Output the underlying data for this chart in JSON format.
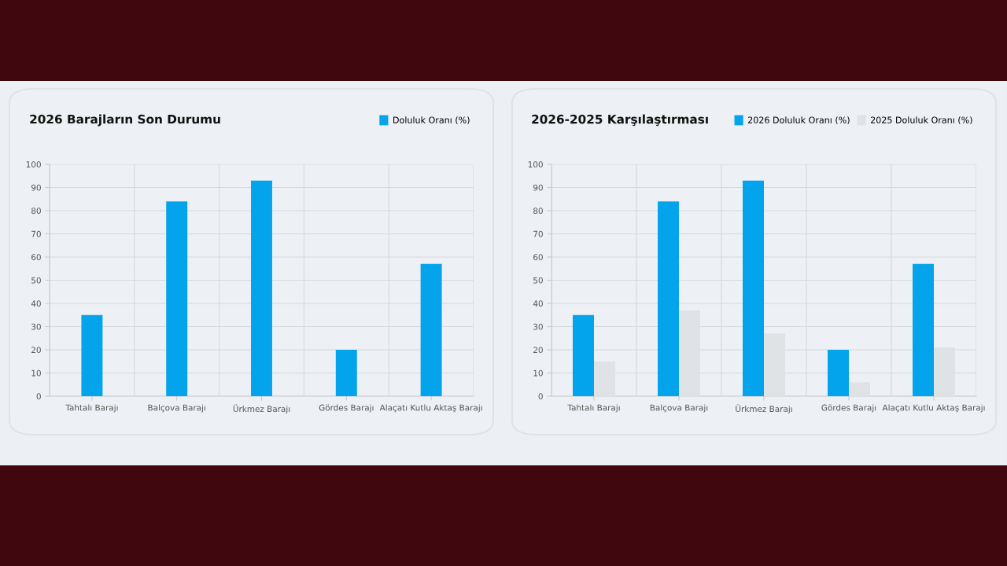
{
  "chart_data": [
    {
      "type": "bar",
      "title": "2026 Barajların Son Durumu",
      "categories": [
        "Tahtalı Barajı",
        "Balçova Barajı",
        "Ürkmez Barajı",
        "Gördes Barajı",
        "Alaçatı Kutlu Aktaş Barajı"
      ],
      "series": [
        {
          "name": "Doluluk Oranı (%)",
          "color": "#03a4ec",
          "values": [
            35,
            84,
            93,
            20,
            57
          ]
        }
      ],
      "ylim": [
        0,
        100
      ],
      "yticks": [
        0,
        10,
        20,
        30,
        40,
        50,
        60,
        70,
        80,
        90,
        100
      ],
      "grid": true,
      "legend": "top right"
    },
    {
      "type": "bar",
      "title": "2026-2025 Karşılaştırması",
      "categories": [
        "Tahtalı Barajı",
        "Balçova Barajı",
        "Ürkmez Barajı",
        "Gördes Barajı",
        "Alaçatı Kutlu Aktaş Barajı"
      ],
      "series": [
        {
          "name": "2026 Doluluk Oranı (%)",
          "color": "#03a4ec",
          "values": [
            35,
            84,
            93,
            20,
            57
          ]
        },
        {
          "name": "2025 Doluluk Oranı (%)",
          "color": "#e0e3e6",
          "values": [
            15,
            37,
            27,
            6,
            21
          ]
        }
      ],
      "ylim": [
        0,
        100
      ],
      "yticks": [
        0,
        10,
        20,
        30,
        40,
        50,
        60,
        70,
        80,
        90,
        100
      ],
      "grid": true,
      "legend": "top right"
    }
  ]
}
